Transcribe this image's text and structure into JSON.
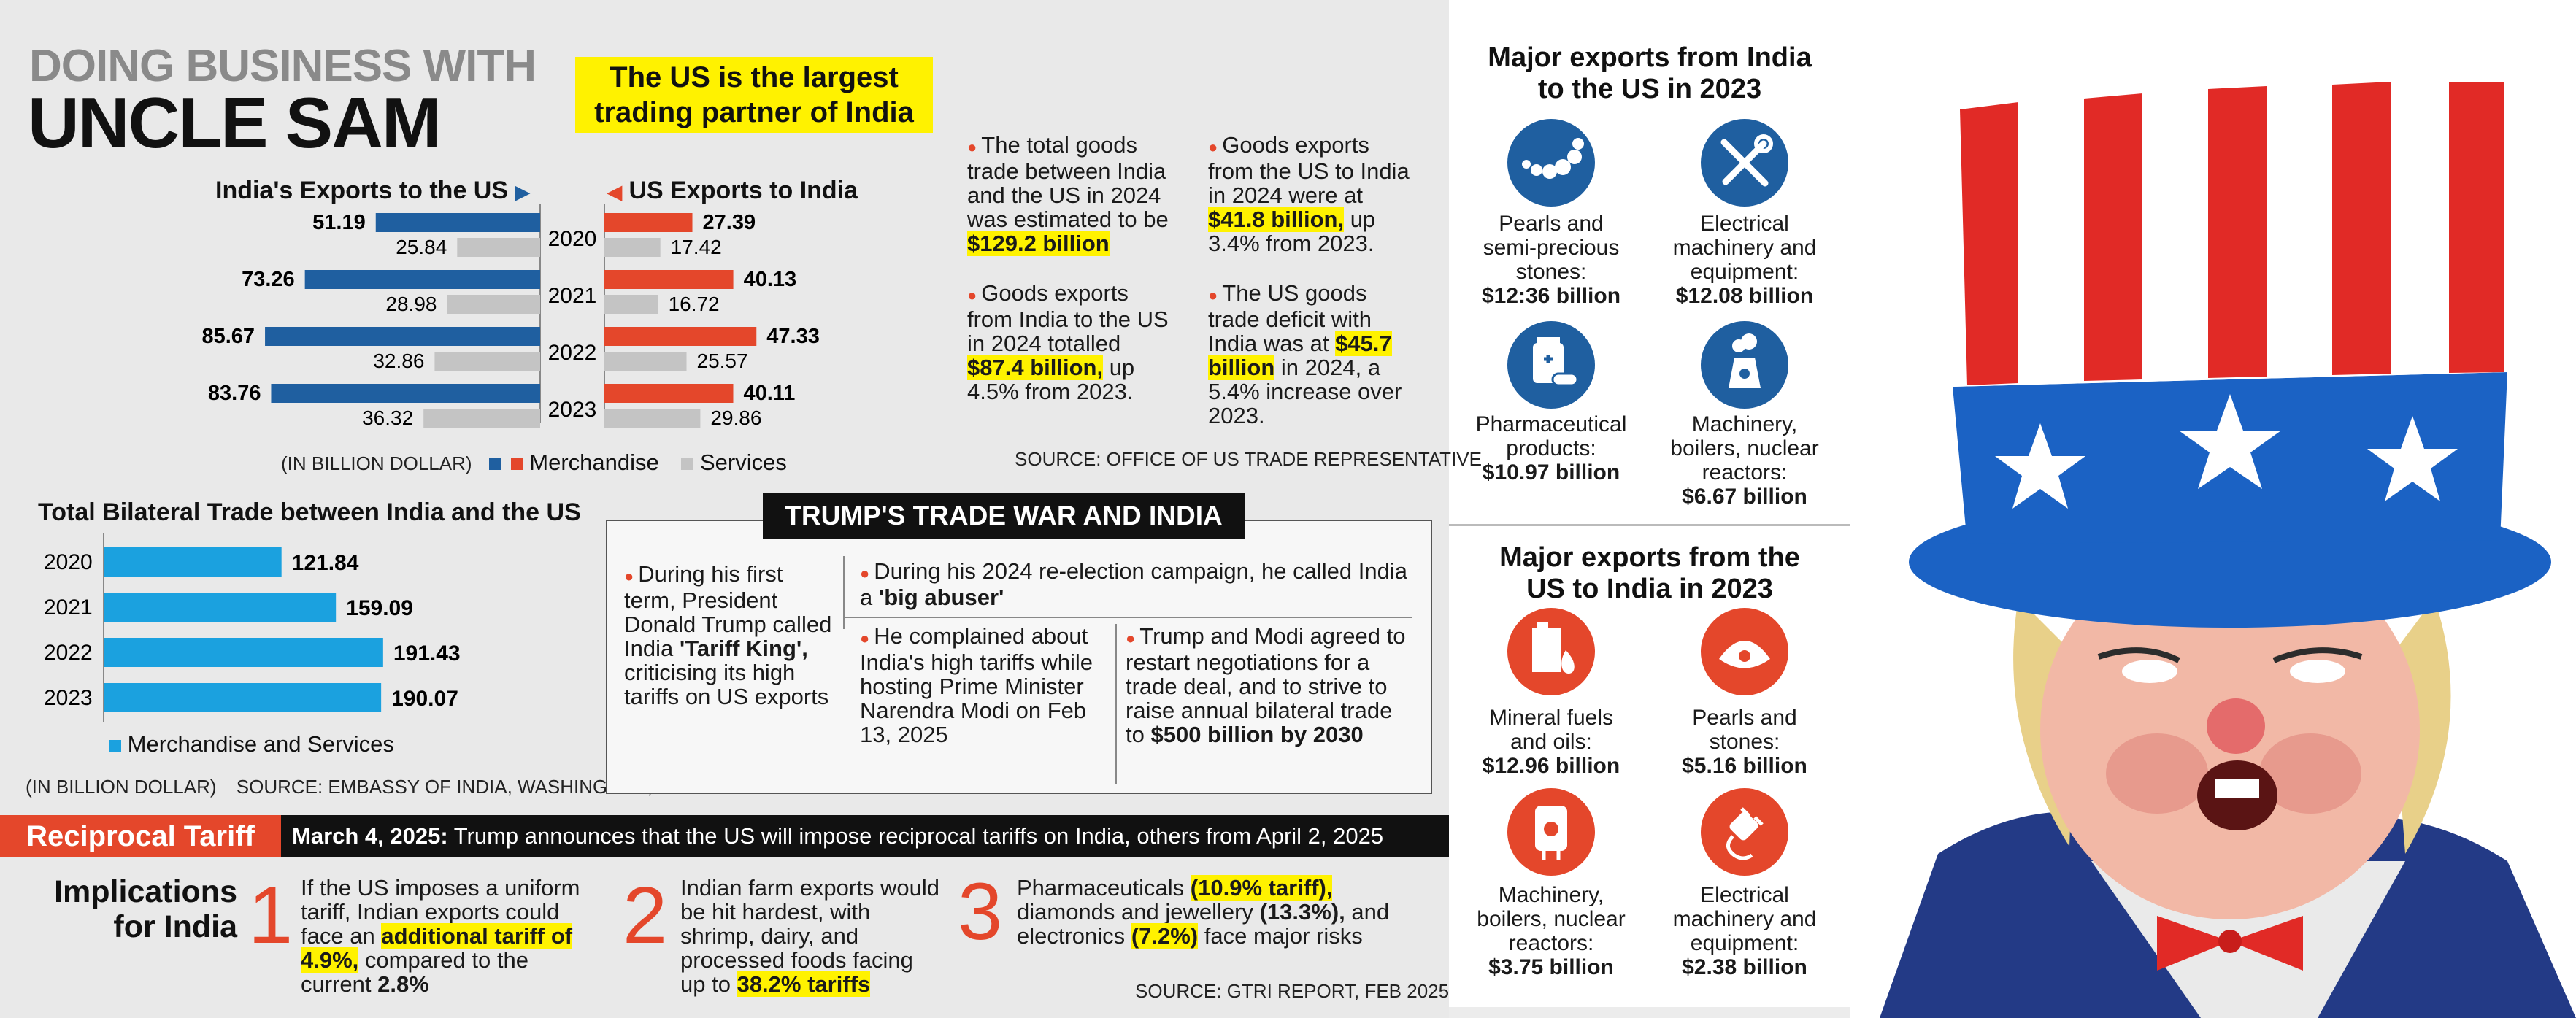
{
  "header": {
    "line1": "DOING BUSINESS WITH",
    "line2": "UNCLE SAM"
  },
  "highlight_box": {
    "line1": "The US is the largest",
    "line2": "trading partner of India"
  },
  "chart_data": [
    {
      "type": "bar",
      "title": "India's Exports to the US",
      "categories": [
        "2020",
        "2021",
        "2022",
        "2023"
      ],
      "series": [
        {
          "name": "Merchandise",
          "values": [
            51.19,
            73.26,
            85.67,
            83.76
          ],
          "color": "#1f5fa0"
        },
        {
          "name": "Services",
          "values": [
            25.84,
            28.98,
            32.86,
            36.32
          ],
          "color": "#c4c4c4"
        }
      ]
    },
    {
      "type": "bar",
      "title": "US Exports to India",
      "categories": [
        "2020",
        "2021",
        "2022",
        "2023"
      ],
      "series": [
        {
          "name": "Merchandise",
          "values": [
            27.39,
            40.13,
            47.33,
            40.11
          ],
          "color": "#e4472b"
        },
        {
          "name": "Services",
          "values": [
            17.42,
            16.72,
            25.57,
            29.86
          ],
          "color": "#c4c4c4"
        }
      ]
    },
    {
      "type": "bar",
      "title": "Total Bilateral Trade between India and the US",
      "categories": [
        "2020",
        "2021",
        "2022",
        "2023"
      ],
      "series": [
        {
          "name": "Merchandise and Services",
          "values": [
            121.84,
            159.09,
            191.43,
            190.07
          ],
          "color": "#1ba1df"
        }
      ]
    }
  ],
  "charts_labels": {
    "unit": "(IN BILLION DOLLAR)",
    "legend_merch": "Merchandise",
    "legend_services": "Services",
    "total_unit": "(IN BILLION DOLLAR)",
    "total_source": "SOURCE: EMBASSY OF INDIA, WASHINGTON, D.C."
  },
  "facts": {
    "f1a": "The total goods trade between India and the US in 2024 was estimated to be",
    "f1b": "$129.2 billion",
    "f2a": "Goods exports from the US to India in 2024 were at",
    "f2b": "$41.8 billion,",
    "f2c": "up 3.4% from 2023.",
    "f3a": "Goods exports from India to the US in 2024 totalled",
    "f3b": "$87.4 billion,",
    "f3c": "up 4.5% from 2023.",
    "f4a": "The US goods trade deficit with India was at",
    "f4b": "$45.7 billion",
    "f4c": "in 2024, a 5.4% increase over 2023.",
    "source": "SOURCE: OFFICE OF US TRADE REPRESENTATIVE"
  },
  "trade_war": {
    "title": "TRUMP'S TRADE WAR AND INDIA",
    "b1a": "During his first term, President Donald Trump called India",
    "b1b": "'Tariff King',",
    "b1c": "criticising its high tariffs on US exports",
    "b2a": "During his 2024 re-election campaign, he called India a",
    "b2b": "'big abuser'",
    "b3": "He complained about India's high tariffs while hosting Prime Minister Narendra Modi on Feb 13, 2025",
    "b4a": "Trump and Modi agreed to restart negotiations for a trade deal, and to strive to raise annual bilateral trade to",
    "b4b": "$500 billion by 2030"
  },
  "reciprocal": {
    "label": "Reciprocal Tariff",
    "date": "March 4, 2025:",
    "text": "Trump announces that the US will impose reciprocal  tariffs on India, others from April 2, 2025"
  },
  "implications": {
    "title1": "Implications",
    "title2": "for India",
    "n1": "1",
    "n2": "2",
    "n3": "3",
    "i1a": "If the US imposes a uniform tariff, Indian exports could face an",
    "i1b": "additional tariff of 4.9%,",
    "i1c": "compared to the current",
    "i1d": "2.8%",
    "i2a": "Indian farm exports would be hit hardest, with shrimp, dairy, and processed foods facing up to",
    "i2b": "38.2% tariffs",
    "i3a": "Pharmaceuticals",
    "i3b": "(10.9% tariff),",
    "i3c": "diamonds and jewellery",
    "i3d": "(13.3%),",
    "i3e": "and electronics",
    "i3f": "(7.2%)",
    "i3g": "face major risks",
    "source": "SOURCE: GTRI REPORT, FEB 2025"
  },
  "india_exports": {
    "title1": "Major exports from India",
    "title2": "to the US in 2023",
    "items": [
      {
        "l1": "Pearls and",
        "l2": "semi-precious",
        "l3": "stones:",
        "value": "$12:36 billion",
        "icon": "pearls-icon"
      },
      {
        "l1": "Electrical",
        "l2": "machinery and",
        "l3": "equipment:",
        "value": "$12.08 billion",
        "icon": "tools-icon"
      },
      {
        "l1": "Pharmaceutical",
        "l2": "products:",
        "l3": "",
        "value": "$10.97 billion",
        "icon": "medicine-icon"
      },
      {
        "l1": "Machinery,",
        "l2": "boilers, nuclear",
        "l3": "reactors:",
        "value": "$6.67 billion",
        "icon": "reactor-icon"
      }
    ],
    "color": "#1f5fa0"
  },
  "us_exports": {
    "title1": "Major exports from the",
    "title2": "US to India in 2023",
    "items": [
      {
        "l1": "Mineral fuels",
        "l2": "and oils:",
        "l3": "",
        "value": "$12.96 billion",
        "icon": "oil-icon"
      },
      {
        "l1": "Pearls and",
        "l2": "stones:",
        "l3": "",
        "value": "$5.16 billion",
        "icon": "oyster-icon"
      },
      {
        "l1": "Machinery,",
        "l2": "boilers, nuclear",
        "l3": "reactors:",
        "value": "$3.75 billion",
        "icon": "boiler-icon"
      },
      {
        "l1": "Electrical",
        "l2": "machinery and",
        "l3": "equipment:",
        "value": "$2.38 billion",
        "icon": "plug-icon"
      }
    ],
    "color": "#e4472b"
  }
}
